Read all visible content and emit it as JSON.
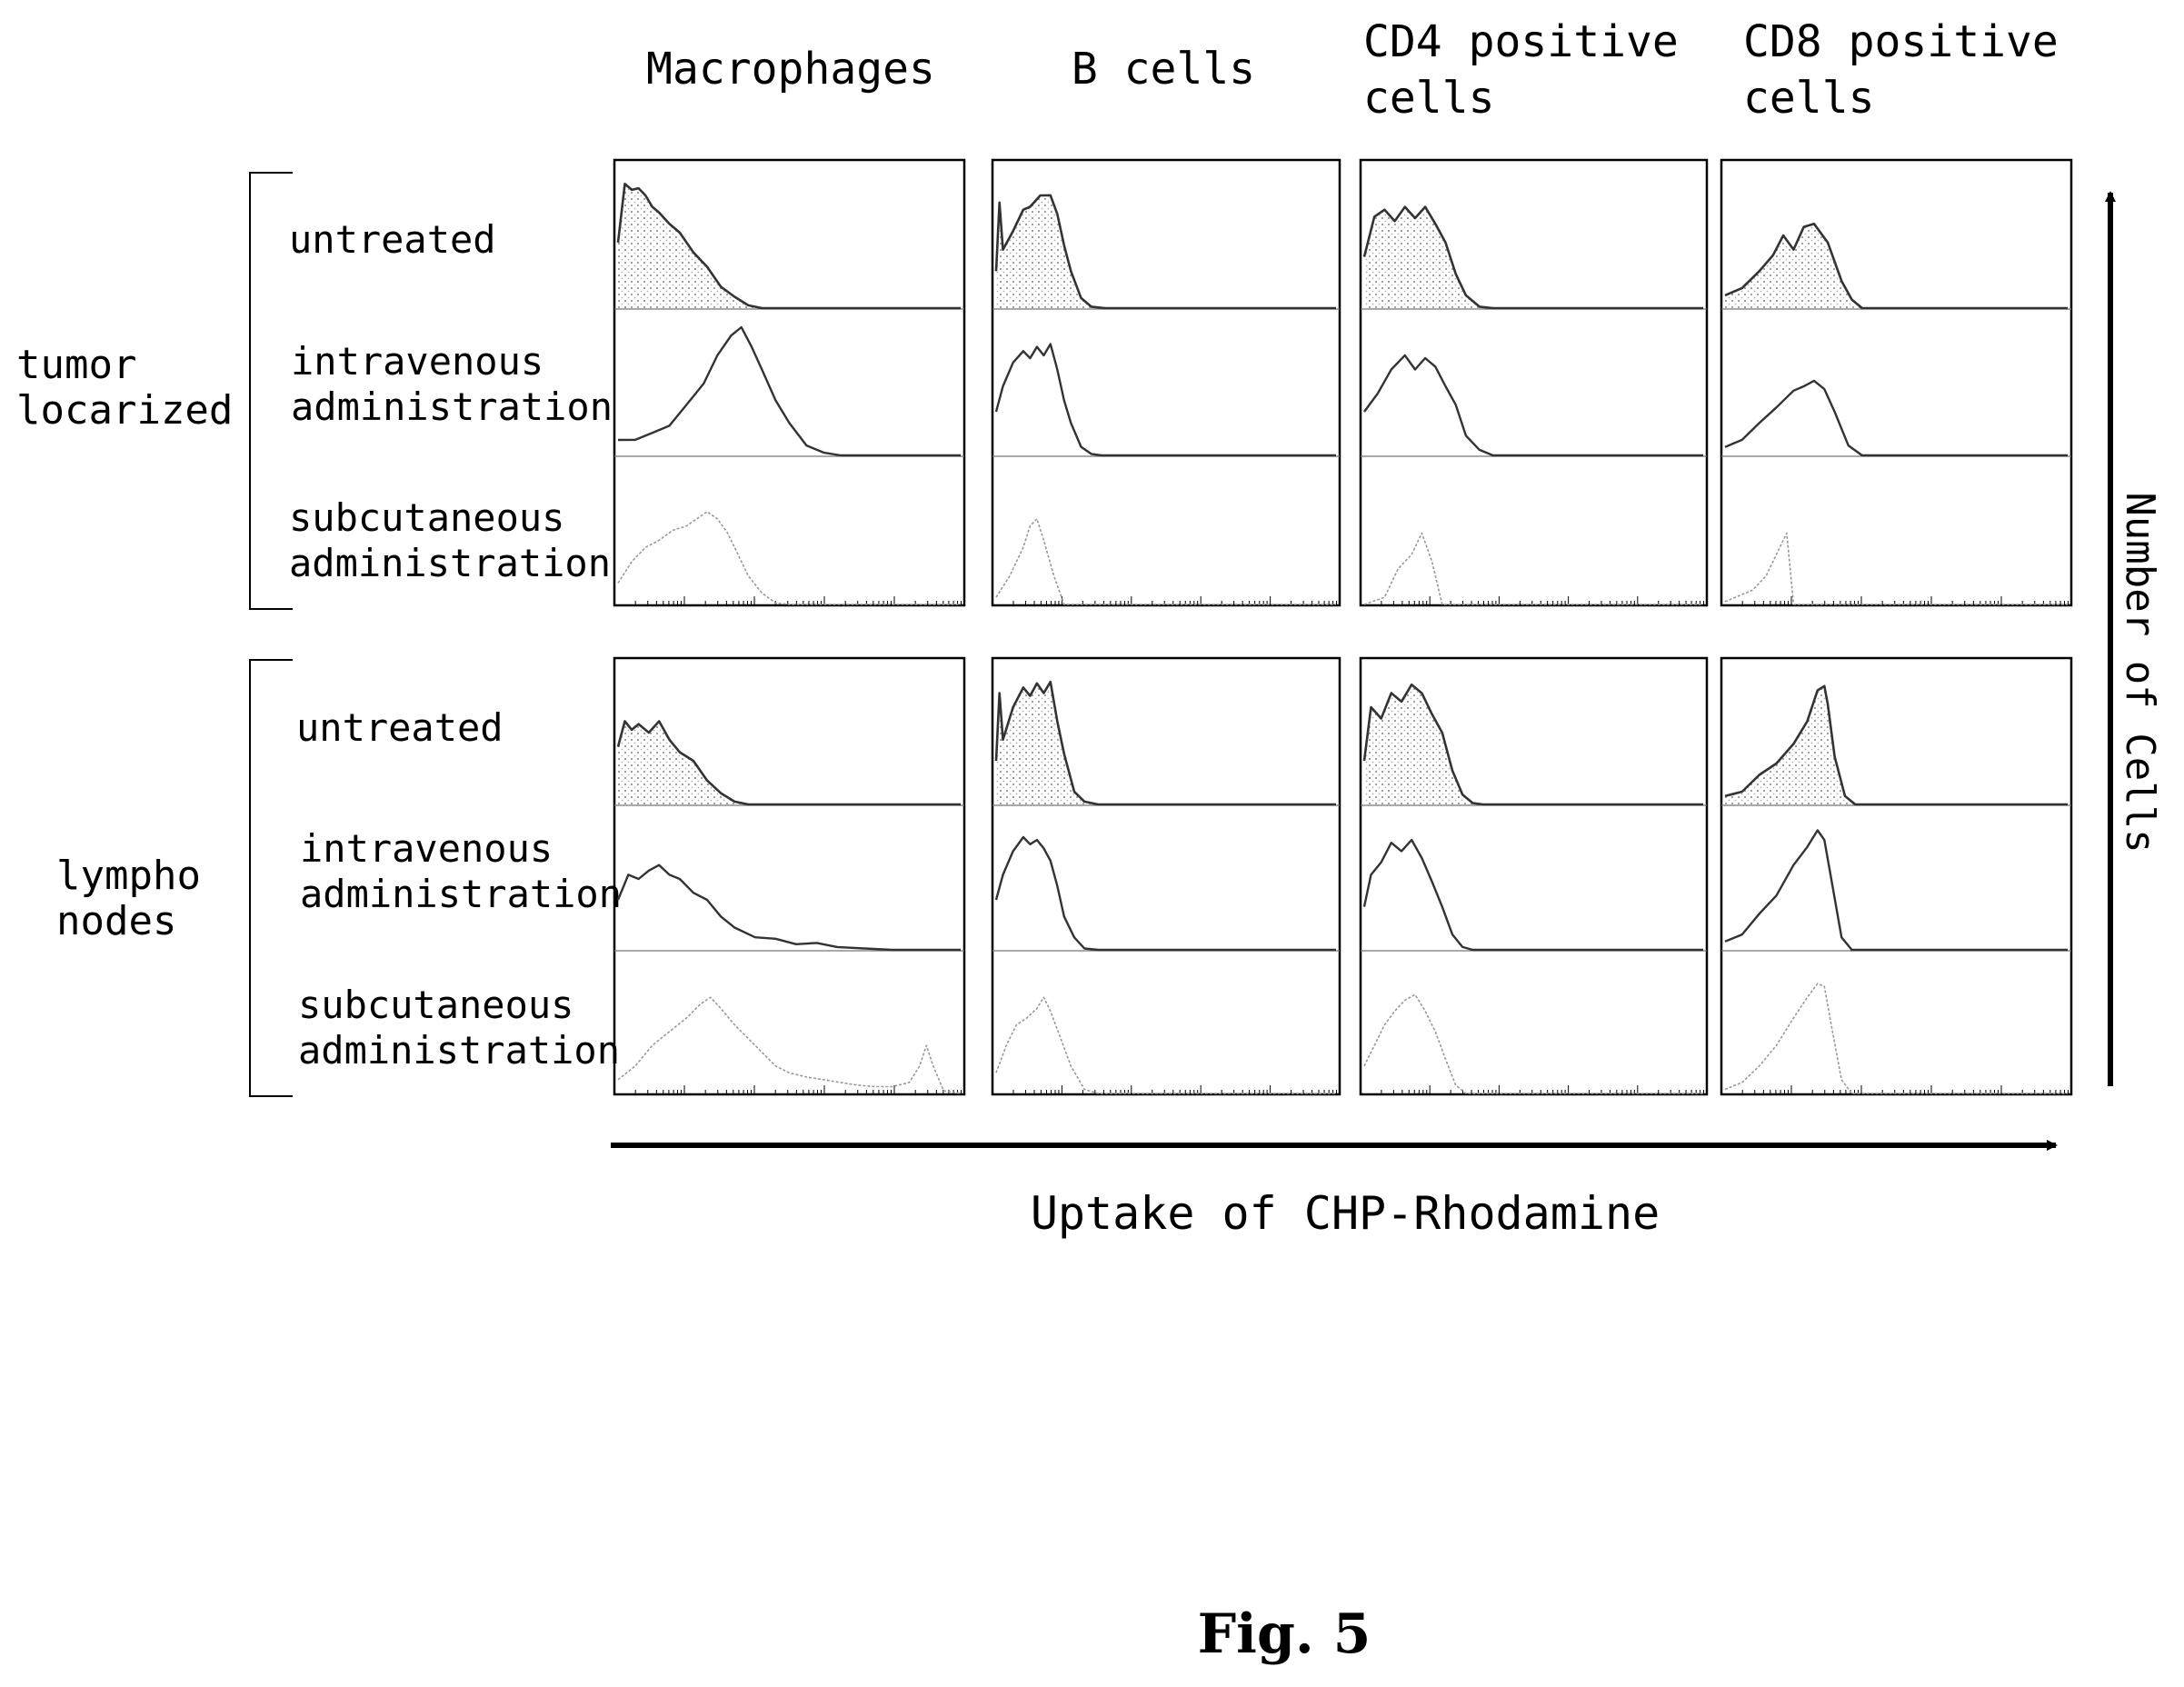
{
  "figure": {
    "caption": "Fig. 5",
    "x_axis_label": "Uptake of CHP-Rhodamine",
    "y_axis_label": "Number of Cells"
  },
  "columns": [
    {
      "label_lines": [
        "Macrophages"
      ]
    },
    {
      "label_lines": [
        "B cells"
      ]
    },
    {
      "label_lines": [
        "CD4 positive",
        "cells"
      ]
    },
    {
      "label_lines": [
        "CD8 positive",
        "cells"
      ]
    }
  ],
  "groups": [
    {
      "label_lines": [
        "tumor",
        "locarized"
      ]
    },
    {
      "label_lines": [
        "lympho",
        "nodes"
      ]
    }
  ],
  "conditions": [
    {
      "label_lines": [
        "untreated"
      ]
    },
    {
      "label_lines": [
        "intravenous",
        "administration"
      ]
    },
    {
      "label_lines": [
        "subcutaneous",
        "administration"
      ]
    }
  ],
  "colors": {
    "ink": "#000000",
    "trace": "#333333",
    "faint": "#999999",
    "fill_pattern": "#9a9a9a"
  },
  "chart_data": {
    "type": "area",
    "x_domain": [
      0,
      1
    ],
    "y_domain": [
      0,
      1
    ],
    "x_scale": "log",
    "grid": false,
    "legend": "none",
    "panels": [
      {
        "group": 0,
        "cell": 0,
        "condition": 0,
        "style": "filled",
        "x": [
          0,
          0.02,
          0.04,
          0.06,
          0.08,
          0.1,
          0.12,
          0.15,
          0.18,
          0.22,
          0.26,
          0.3,
          0.34,
          0.38,
          0.42,
          0.46,
          1
        ],
        "y": [
          0.45,
          0.88,
          0.82,
          0.85,
          0.78,
          0.72,
          0.66,
          0.6,
          0.52,
          0.4,
          0.28,
          0.16,
          0.07,
          0.02,
          0,
          0,
          0
        ]
      },
      {
        "group": 0,
        "cell": 0,
        "condition": 1,
        "style": "line",
        "x": [
          0,
          0.05,
          0.1,
          0.15,
          0.2,
          0.25,
          0.29,
          0.33,
          0.36,
          0.39,
          0.42,
          0.46,
          0.5,
          0.55,
          0.6,
          0.65,
          0.7,
          1
        ],
        "y": [
          0.1,
          0.12,
          0.15,
          0.22,
          0.35,
          0.52,
          0.7,
          0.86,
          0.9,
          0.78,
          0.6,
          0.4,
          0.22,
          0.08,
          0.02,
          0,
          0,
          0
        ]
      },
      {
        "group": 0,
        "cell": 0,
        "condition": 2,
        "style": "faint",
        "x": [
          0,
          0.04,
          0.08,
          0.12,
          0.16,
          0.2,
          0.23,
          0.26,
          0.29,
          0.32,
          0.35,
          0.38,
          0.42,
          0.46,
          0.5,
          1
        ],
        "y": [
          0.15,
          0.3,
          0.4,
          0.45,
          0.52,
          0.55,
          0.6,
          0.65,
          0.6,
          0.5,
          0.35,
          0.2,
          0.08,
          0.01,
          0,
          0
        ]
      },
      {
        "group": 0,
        "cell": 1,
        "condition": 0,
        "style": "filled",
        "x": [
          0,
          0.01,
          0.02,
          0.05,
          0.08,
          0.1,
          0.13,
          0.16,
          0.18,
          0.2,
          0.22,
          0.25,
          0.28,
          0.32,
          1
        ],
        "y": [
          0.25,
          0.75,
          0.4,
          0.55,
          0.68,
          0.72,
          0.78,
          0.8,
          0.65,
          0.45,
          0.25,
          0.08,
          0.01,
          0,
          0
        ]
      },
      {
        "group": 0,
        "cell": 1,
        "condition": 1,
        "style": "line",
        "x": [
          0,
          0.02,
          0.05,
          0.08,
          0.1,
          0.12,
          0.14,
          0.16,
          0.18,
          0.2,
          0.22,
          0.25,
          0.28,
          0.31,
          1
        ],
        "y": [
          0.3,
          0.5,
          0.65,
          0.75,
          0.68,
          0.78,
          0.7,
          0.8,
          0.6,
          0.4,
          0.22,
          0.07,
          0.01,
          0,
          0
        ]
      },
      {
        "group": 0,
        "cell": 1,
        "condition": 2,
        "style": "faint",
        "x": [
          0,
          0.04,
          0.08,
          0.1,
          0.12,
          0.14,
          0.17,
          0.2,
          1
        ],
        "y": [
          0.05,
          0.2,
          0.4,
          0.55,
          0.6,
          0.45,
          0.2,
          0,
          0
        ]
      },
      {
        "group": 0,
        "cell": 2,
        "condition": 0,
        "style": "filled",
        "x": [
          0,
          0.03,
          0.06,
          0.09,
          0.12,
          0.15,
          0.18,
          0.21,
          0.24,
          0.27,
          0.3,
          0.34,
          0.38,
          1
        ],
        "y": [
          0.35,
          0.65,
          0.68,
          0.62,
          0.7,
          0.64,
          0.7,
          0.6,
          0.45,
          0.25,
          0.08,
          0.01,
          0,
          0
        ]
      },
      {
        "group": 0,
        "cell": 2,
        "condition": 1,
        "style": "line",
        "x": [
          0,
          0.04,
          0.08,
          0.12,
          0.15,
          0.18,
          0.21,
          0.24,
          0.27,
          0.3,
          0.34,
          0.38,
          1
        ],
        "y": [
          0.3,
          0.45,
          0.6,
          0.72,
          0.6,
          0.7,
          0.62,
          0.5,
          0.35,
          0.15,
          0.03,
          0,
          0
        ]
      },
      {
        "group": 0,
        "cell": 2,
        "condition": 2,
        "style": "faint",
        "x": [
          0,
          0.06,
          0.1,
          0.14,
          0.17,
          0.2,
          0.23,
          1
        ],
        "y": [
          0,
          0.05,
          0.25,
          0.35,
          0.5,
          0.3,
          0,
          0
        ]
      },
      {
        "group": 0,
        "cell": 3,
        "condition": 0,
        "style": "filled",
        "x": [
          0,
          0.05,
          0.1,
          0.14,
          0.17,
          0.2,
          0.23,
          0.26,
          0.3,
          0.34,
          0.37,
          0.4,
          1
        ],
        "y": [
          0.08,
          0.15,
          0.25,
          0.38,
          0.5,
          0.42,
          0.56,
          0.6,
          0.45,
          0.2,
          0.05,
          0,
          0
        ]
      },
      {
        "group": 0,
        "cell": 3,
        "condition": 1,
        "style": "line",
        "x": [
          0,
          0.05,
          0.1,
          0.15,
          0.2,
          0.23,
          0.26,
          0.29,
          0.32,
          0.36,
          0.4,
          1
        ],
        "y": [
          0.05,
          0.12,
          0.22,
          0.35,
          0.45,
          0.5,
          0.52,
          0.48,
          0.3,
          0.08,
          0,
          0
        ]
      },
      {
        "group": 0,
        "cell": 3,
        "condition": 2,
        "style": "faint",
        "x": [
          0,
          0.04,
          0.08,
          0.12,
          0.15,
          0.18,
          0.2,
          1
        ],
        "y": [
          0.02,
          0.06,
          0.1,
          0.2,
          0.35,
          0.5,
          0,
          0
        ]
      },
      {
        "group": 1,
        "cell": 0,
        "condition": 0,
        "style": "filled",
        "x": [
          0,
          0.02,
          0.04,
          0.06,
          0.09,
          0.12,
          0.15,
          0.18,
          0.22,
          0.26,
          0.3,
          0.34,
          0.38,
          0.42,
          1
        ],
        "y": [
          0.4,
          0.6,
          0.52,
          0.58,
          0.5,
          0.6,
          0.45,
          0.38,
          0.3,
          0.18,
          0.07,
          0.02,
          0,
          0,
          0
        ]
      },
      {
        "group": 1,
        "cell": 0,
        "condition": 1,
        "style": "line",
        "x": [
          0,
          0.03,
          0.06,
          0.09,
          0.12,
          0.15,
          0.18,
          0.22,
          0.26,
          0.3,
          0.34,
          0.4,
          0.46,
          0.52,
          0.58,
          0.64,
          0.72,
          0.8,
          1
        ],
        "y": [
          0.35,
          0.55,
          0.5,
          0.58,
          0.6,
          0.55,
          0.5,
          0.42,
          0.35,
          0.25,
          0.15,
          0.1,
          0.07,
          0.05,
          0.04,
          0.02,
          0.01,
          0,
          0
        ]
      },
      {
        "group": 1,
        "cell": 0,
        "condition": 2,
        "style": "faint",
        "x": [
          0,
          0.05,
          0.1,
          0.15,
          0.2,
          0.24,
          0.27,
          0.3,
          0.34,
          0.38,
          0.42,
          0.46,
          0.5,
          0.55,
          0.6,
          0.65,
          0.7,
          0.75,
          0.8,
          0.85,
          0.88,
          0.9,
          0.92,
          0.95,
          1
        ],
        "y": [
          0.1,
          0.2,
          0.35,
          0.45,
          0.55,
          0.65,
          0.7,
          0.62,
          0.5,
          0.4,
          0.3,
          0.2,
          0.15,
          0.12,
          0.1,
          0.08,
          0.06,
          0.05,
          0.05,
          0.08,
          0.2,
          0.35,
          0.2,
          0.02,
          0
        ]
      },
      {
        "group": 1,
        "cell": 1,
        "condition": 0,
        "style": "filled",
        "x": [
          0,
          0.01,
          0.02,
          0.05,
          0.08,
          0.1,
          0.12,
          0.14,
          0.16,
          0.18,
          0.2,
          0.23,
          0.26,
          0.3,
          1
        ],
        "y": [
          0.3,
          0.8,
          0.45,
          0.7,
          0.82,
          0.78,
          0.85,
          0.8,
          0.86,
          0.6,
          0.35,
          0.1,
          0.02,
          0,
          0
        ]
      },
      {
        "group": 1,
        "cell": 1,
        "condition": 1,
        "style": "line",
        "x": [
          0,
          0.02,
          0.05,
          0.08,
          0.1,
          0.12,
          0.14,
          0.16,
          0.18,
          0.2,
          0.23,
          0.26,
          0.3,
          1
        ],
        "y": [
          0.35,
          0.55,
          0.7,
          0.82,
          0.75,
          0.8,
          0.72,
          0.65,
          0.45,
          0.25,
          0.08,
          0.01,
          0,
          0
        ]
      },
      {
        "group": 1,
        "cell": 1,
        "condition": 2,
        "style": "faint",
        "x": [
          0,
          0.03,
          0.06,
          0.09,
          0.12,
          0.14,
          0.16,
          0.19,
          0.22,
          0.26,
          0.3,
          1
        ],
        "y": [
          0.15,
          0.35,
          0.5,
          0.55,
          0.62,
          0.7,
          0.6,
          0.4,
          0.2,
          0.03,
          0,
          0
        ]
      },
      {
        "group": 1,
        "cell": 2,
        "condition": 0,
        "style": "filled",
        "x": [
          0,
          0.02,
          0.05,
          0.08,
          0.11,
          0.14,
          0.17,
          0.2,
          0.23,
          0.26,
          0.29,
          0.32,
          0.35,
          1
        ],
        "y": [
          0.3,
          0.7,
          0.6,
          0.8,
          0.72,
          0.86,
          0.78,
          0.65,
          0.5,
          0.25,
          0.06,
          0.01,
          0,
          0
        ]
      },
      {
        "group": 1,
        "cell": 2,
        "condition": 1,
        "style": "line",
        "x": [
          0,
          0.02,
          0.05,
          0.08,
          0.11,
          0.14,
          0.17,
          0.2,
          0.23,
          0.26,
          0.29,
          0.32,
          1
        ],
        "y": [
          0.3,
          0.55,
          0.62,
          0.78,
          0.7,
          0.8,
          0.65,
          0.5,
          0.3,
          0.12,
          0.02,
          0,
          0
        ]
      },
      {
        "group": 1,
        "cell": 2,
        "condition": 2,
        "style": "faint",
        "x": [
          0,
          0.03,
          0.06,
          0.09,
          0.12,
          0.15,
          0.18,
          0.21,
          0.24,
          0.27,
          0.3,
          1
        ],
        "y": [
          0.2,
          0.35,
          0.5,
          0.6,
          0.68,
          0.72,
          0.6,
          0.45,
          0.25,
          0.06,
          0,
          0
        ]
      },
      {
        "group": 1,
        "cell": 3,
        "condition": 0,
        "style": "filled",
        "x": [
          0,
          0.05,
          0.1,
          0.15,
          0.2,
          0.24,
          0.27,
          0.29,
          0.3,
          0.32,
          0.35,
          0.38,
          1
        ],
        "y": [
          0.05,
          0.1,
          0.2,
          0.3,
          0.42,
          0.6,
          0.8,
          0.85,
          0.7,
          0.35,
          0.05,
          0,
          0
        ]
      },
      {
        "group": 1,
        "cell": 3,
        "condition": 1,
        "style": "line",
        "x": [
          0,
          0.05,
          0.1,
          0.15,
          0.2,
          0.24,
          0.27,
          0.29,
          0.31,
          0.34,
          0.37,
          1
        ],
        "y": [
          0.05,
          0.12,
          0.25,
          0.4,
          0.6,
          0.75,
          0.85,
          0.8,
          0.5,
          0.1,
          0,
          0
        ]
      },
      {
        "group": 1,
        "cell": 3,
        "condition": 2,
        "style": "faint",
        "x": [
          0,
          0.05,
          0.1,
          0.15,
          0.2,
          0.24,
          0.27,
          0.29,
          0.31,
          0.34,
          0.37,
          1
        ],
        "y": [
          0.03,
          0.08,
          0.2,
          0.35,
          0.55,
          0.7,
          0.8,
          0.78,
          0.5,
          0.1,
          0,
          0
        ]
      }
    ]
  }
}
